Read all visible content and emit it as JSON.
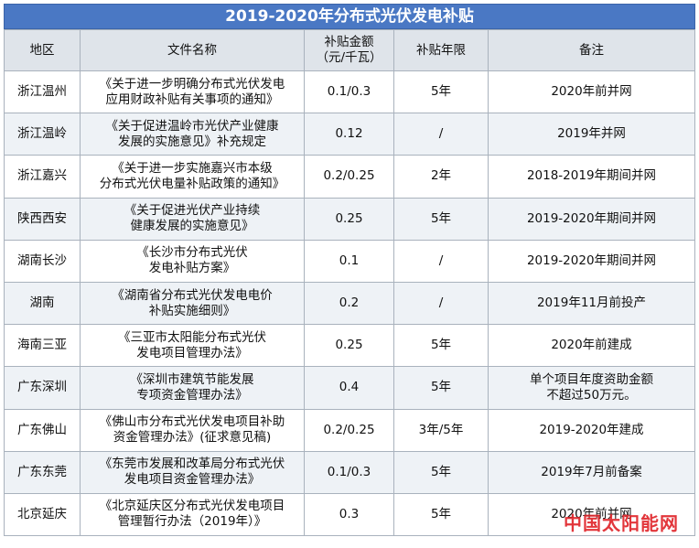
{
  "title": "2019-2020年分布式光伏发电补贴",
  "headers": [
    "地区",
    "文件名称",
    "补贴金额\n（元/千瓦）",
    "补贴年限",
    "备注"
  ],
  "rows": [
    {
      "region": "浙江温州",
      "doc": "《关于进一步明确分布式光伏发电\n应用财政补贴有关事项的通知》",
      "amount": "0.1/0.3",
      "years": "5年",
      "note": "2020年前并网"
    },
    {
      "region": "浙江温岭",
      "doc": "《关于促进温岭市光伏产业健康\n发展的实施意见》补充规定",
      "amount": "0.12",
      "years": "/",
      "note": "2019年并网"
    },
    {
      "region": "浙江嘉兴",
      "doc": "《关于进一步实施嘉兴市本级\n分布式光伏电量补贴政策的通知》",
      "amount": "0.2/0.25",
      "years": "2年",
      "note": "2018-2019年期间并网"
    },
    {
      "region": "陕西西安",
      "doc": "《关于促进光伏产业持续\n健康发展的实施意见》",
      "amount": "0.25",
      "years": "5年",
      "note": "2019-2020年期间并网"
    },
    {
      "region": "湖南长沙",
      "doc": "《长沙市分布式光伏\n发电补贴方案》",
      "amount": "0.1",
      "years": "/",
      "note": "2019-2020年期间并网"
    },
    {
      "region": "湖南",
      "doc": "《湖南省分布式光伏发电电价\n补贴实施细则》",
      "amount": "0.2",
      "years": "/",
      "note": "2019年11月前投产"
    },
    {
      "region": "海南三亚",
      "doc": "《三亚市太阳能分布式光伏\n发电项目管理办法》",
      "amount": "0.25",
      "years": "5年",
      "note": "2020年前建成"
    },
    {
      "region": "广东深圳",
      "doc": "《深圳市建筑节能发展\n专项资金管理办法》",
      "amount": "0.4",
      "years": "5年",
      "note": "单个项目年度资助金额\n不超过50万元。"
    },
    {
      "region": "广东佛山",
      "doc": "《佛山市分布式光伏发电项目补助\n资金管理办法》(征求意见稿)",
      "amount": "0.2/0.25",
      "years": "3年/5年",
      "note": "2019-2020年建成"
    },
    {
      "region": "广东东莞",
      "doc": "《东莞市发展和改革局分布式光伏\n发电项目资金管理办法》",
      "amount": "0.1/0.3",
      "years": "5年",
      "note": "2019年7月前备案"
    },
    {
      "region": "北京延庆",
      "doc": "《北京延庆区分布式光伏发电项目\n管理暂行办法（2019年）》",
      "amount": "0.3",
      "years": "5年",
      "note": "2020年前并网"
    }
  ],
  "watermark": "中国太阳能网"
}
